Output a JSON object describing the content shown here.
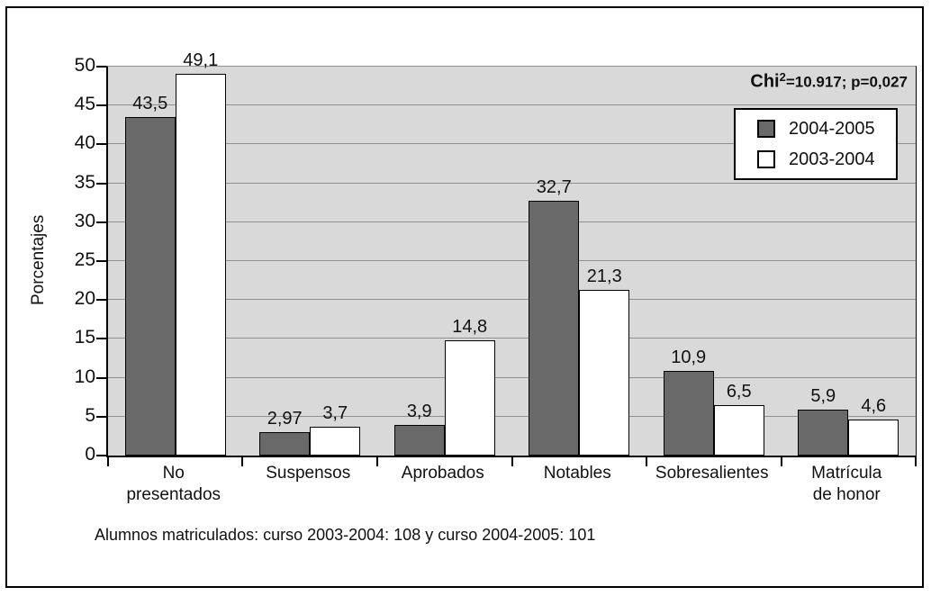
{
  "annotation": {
    "prefix": "Chi",
    "sup": "2",
    "rest": "=10.917; p=0,027"
  },
  "footnote": "Alumnos matriculados: curso 2003-2004: 108 y curso 2004-2005: 101",
  "chart_data": {
    "type": "bar",
    "title": "",
    "xlabel": "",
    "ylabel": "Porcentajes",
    "ylim": [
      0,
      50
    ],
    "ytick_step": 5,
    "grid": true,
    "plot_background": "#d9d9d9",
    "gridline_color": "#8f8f8f",
    "legend_position": "top-right-inside",
    "annotation_text": "Chi²=10.917; p=0,027",
    "categories": [
      "No presentados",
      "Suspensos",
      "Aprobados",
      "Notables",
      "Sobresalientes",
      "Matrícula de honor"
    ],
    "category_display_lines": [
      [
        "No",
        "presentados"
      ],
      [
        "Suspensos"
      ],
      [
        "Aprobados"
      ],
      [
        "Notables"
      ],
      [
        "Sobresalientes"
      ],
      [
        "Matrícula",
        "de honor"
      ]
    ],
    "series": [
      {
        "name": "2004-2005",
        "color": "#696969",
        "values": [
          43.5,
          2.97,
          3.9,
          32.7,
          10.9,
          5.9
        ],
        "value_labels": [
          "43,5",
          "2,97",
          "3,9",
          "32,7",
          "10,9",
          "5,9"
        ]
      },
      {
        "name": "2003-2004",
        "color": "#ffffff",
        "values": [
          49.1,
          3.7,
          14.8,
          21.3,
          6.5,
          4.6
        ],
        "value_labels": [
          "49,1",
          "3,7",
          "14,8",
          "21,3",
          "6,5",
          "4,6"
        ]
      }
    ]
  }
}
